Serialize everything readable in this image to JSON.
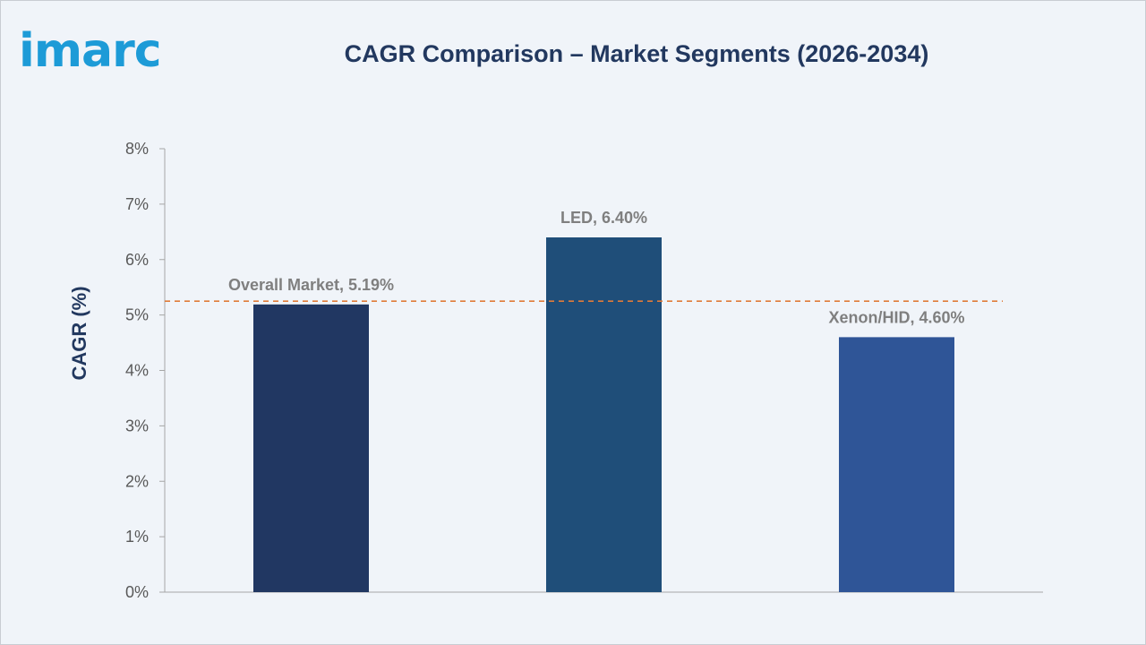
{
  "brand": {
    "logo_text": "imarc"
  },
  "chart_data": {
    "type": "bar",
    "title": "CAGR Comparison – Market Segments (2026-2034)",
    "xlabel": "",
    "ylabel": "CAGR (%)",
    "ylim": [
      0,
      8
    ],
    "yticks": [
      "0%",
      "1%",
      "2%",
      "3%",
      "4%",
      "5%",
      "6%",
      "7%",
      "8%"
    ],
    "categories": [
      "Overall Market",
      "LED",
      "Xenon/HID"
    ],
    "values": [
      5.19,
      6.4,
      4.6
    ],
    "data_labels": [
      "Overall Market, 5.19%",
      "LED, 6.40%",
      "Xenon/HID, 4.60%"
    ],
    "bar_colors": [
      "#213762",
      "#1f4e79",
      "#2f5597"
    ],
    "reference_line": {
      "value": 5.25,
      "color": "#e07b39",
      "style": "dashed"
    },
    "grid": false,
    "legend": "none"
  }
}
